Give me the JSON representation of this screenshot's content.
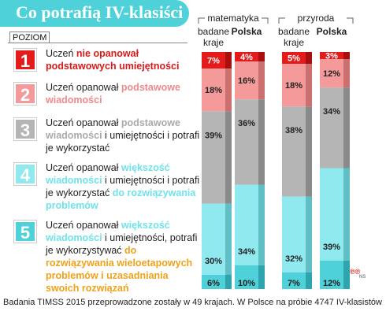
{
  "title": "Co potrafią IV-klasiści",
  "poziom_label": "POZIOM",
  "levels": [
    {
      "num": "1",
      "bg": "#e31b1b",
      "fg": "#ffffff",
      "parts": [
        {
          "t": "Uczeń ",
          "c": ""
        },
        {
          "t": "nie opanował podstawowych umiejętności",
          "c": "hl-red"
        }
      ]
    },
    {
      "num": "2",
      "bg": "#f59a9a",
      "fg": "#ffffff",
      "parts": [
        {
          "t": "Uczeń opanował ",
          "c": ""
        },
        {
          "t": "podstawowe wiadomości",
          "c": "hl-pink"
        }
      ]
    },
    {
      "num": "3",
      "bg": "#b5b5b5",
      "fg": "#ffffff",
      "parts": [
        {
          "t": "Uczeń opanował ",
          "c": ""
        },
        {
          "t": "podstawowe wiadomości",
          "c": "hl-gray"
        },
        {
          "t": " i umiejętności i potrafi je wykorzystać",
          "c": ""
        }
      ]
    },
    {
      "num": "4",
      "bg": "#8fe9ee",
      "fg": "#ffffff",
      "parts": [
        {
          "t": "Uczeń opanował ",
          "c": ""
        },
        {
          "t": "większość wiadomości",
          "c": "hl-cyan"
        },
        {
          "t": " i umiejętności i potrafi je wykorzystać ",
          "c": ""
        },
        {
          "t": "do rozwiązywania problemów",
          "c": "hl-cyan"
        }
      ]
    },
    {
      "num": "5",
      "bg": "#4fd1d9",
      "fg": "#ffffff",
      "parts": [
        {
          "t": "Uczeń opanował ",
          "c": ""
        },
        {
          "t": "większość wiadomości",
          "c": "hl-cyan"
        },
        {
          "t": " i umiejętności, potrafi je wykorzystywać ",
          "c": ""
        },
        {
          "t": "do rozwiązywania wieloetapowych problemów i uzasadniania swoich rozwiązań",
          "c": "hl-orange"
        }
      ]
    }
  ],
  "footer": "Badania TIMSS 2015 przeprowadzone zostały w 49 krajach. W Polsce na próbie 4747 IV-klasistów",
  "credit": "℗℗",
  "credit_sub": "NS",
  "colors": {
    "level1": "#e31b1b",
    "level2": "#f59a9a",
    "level3": "#b5b5b5",
    "level4": "#8fe9ee",
    "level5": "#4fd1d9"
  },
  "chart_data": {
    "type": "bar",
    "stacked": true,
    "groups": [
      "matematyka",
      "przyroda"
    ],
    "categories": [
      "badane kraje",
      "Polska",
      "badane kraje",
      "Polska"
    ],
    "category_group": [
      0,
      0,
      1,
      1
    ],
    "series": [
      {
        "name": "1",
        "values": [
          7,
          4,
          5,
          3
        ]
      },
      {
        "name": "2",
        "values": [
          18,
          16,
          18,
          12
        ]
      },
      {
        "name": "3",
        "values": [
          39,
          36,
          38,
          34
        ]
      },
      {
        "name": "4",
        "values": [
          30,
          34,
          32,
          39
        ]
      },
      {
        "name": "5",
        "values": [
          6,
          10,
          7,
          12
        ]
      }
    ],
    "data_labels_suffix": "%",
    "ylim": [
      0,
      100
    ]
  }
}
